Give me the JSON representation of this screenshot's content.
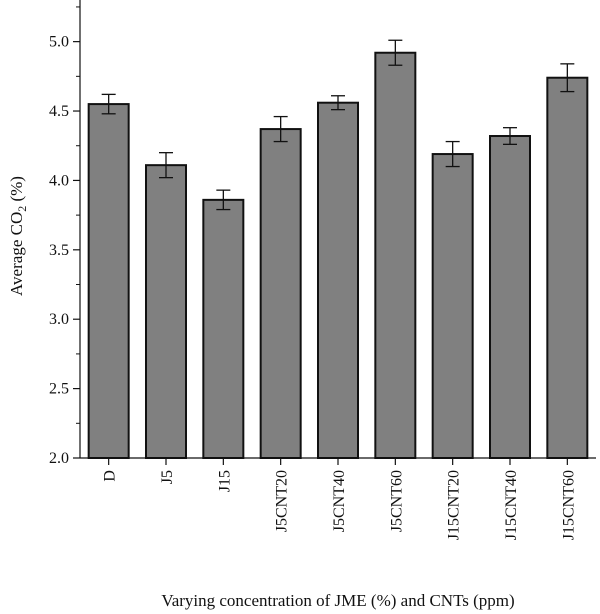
{
  "chart_data": {
    "type": "bar",
    "title": "",
    "xlabel": "Varying concentration of JME (%) and CNTs (ppm)",
    "ylabel": "Average CO",
    "ylabel_subscript": "2",
    "ylabel_suffix": " (%)",
    "categories": [
      "D",
      "J5",
      "J15",
      "J5CNT20",
      "J5CNT40",
      "J5CNT60",
      "J15CNT20",
      "J15CNT40",
      "J15CNT60"
    ],
    "values": [
      4.55,
      4.11,
      3.86,
      4.37,
      4.56,
      4.92,
      4.19,
      4.32,
      4.74
    ],
    "errors": [
      0.07,
      0.09,
      0.07,
      0.09,
      0.05,
      0.09,
      0.09,
      0.06,
      0.1
    ],
    "ylim": [
      2.0,
      5.3
    ],
    "yticks": [
      "2.0",
      "2.5",
      "3.0",
      "3.5",
      "4.0",
      "4.5",
      "5.0"
    ],
    "bar_color": "#808080",
    "grid": false
  }
}
